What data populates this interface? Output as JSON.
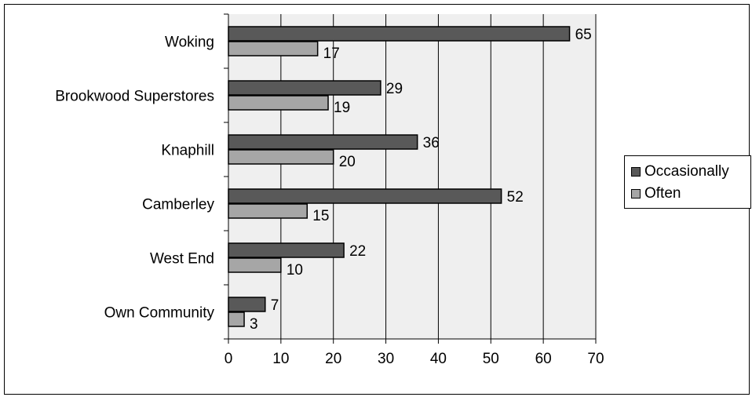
{
  "chart_data": {
    "type": "bar",
    "orientation": "horizontal",
    "categories": [
      "Woking",
      "Brookwood Superstores",
      "Knaphill",
      "Camberley",
      "West End",
      "Own Community"
    ],
    "series": [
      {
        "name": "Occasionally",
        "color": "#595959",
        "values": [
          65,
          29,
          36,
          52,
          22,
          7
        ]
      },
      {
        "name": "Often",
        "color": "#a6a6a6",
        "values": [
          17,
          19,
          20,
          15,
          10,
          3
        ]
      }
    ],
    "xlim": [
      0,
      70
    ],
    "xticks": [
      "0",
      "10",
      "20",
      "30",
      "40",
      "50",
      "60",
      "70"
    ],
    "grid": true,
    "legend_position": "right",
    "plot_background": "#efefef"
  }
}
